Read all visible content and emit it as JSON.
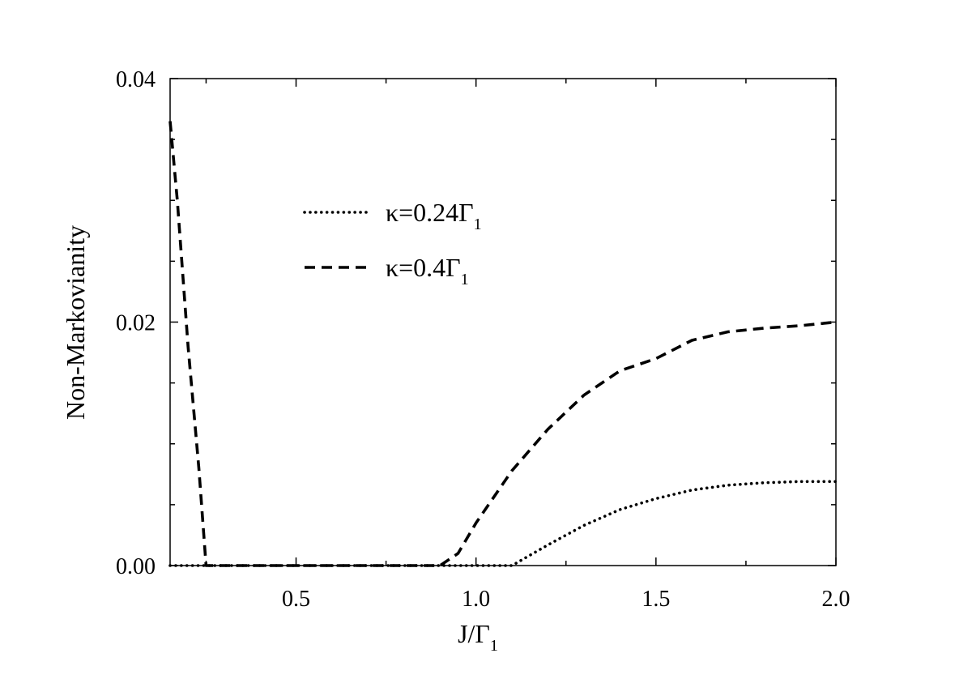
{
  "chart_data": {
    "type": "line",
    "title": "",
    "xlabel": {
      "main": "J/Γ",
      "sub": "1"
    },
    "ylabel": "Non-Markovianity",
    "xlim": [
      0.15,
      2.0
    ],
    "ylim": [
      0.0,
      0.04
    ],
    "x_ticks": [
      0.5,
      1.0,
      1.5,
      2.0
    ],
    "x_tick_labels": [
      "0.5",
      "1.0",
      "1.5",
      "2.0"
    ],
    "y_ticks": [
      0.0,
      0.02,
      0.04
    ],
    "y_tick_labels": [
      "0.00",
      "0.02",
      "0.04"
    ],
    "grid": false,
    "legend_position": "upper-left",
    "series": [
      {
        "name": "κ=0.24Γ",
        "name_sub": "1",
        "style": "dotted",
        "color": "#000000",
        "points": [
          [
            0.15,
            0.0
          ],
          [
            0.5,
            0.0
          ],
          [
            1.0,
            0.0
          ],
          [
            1.1,
            0.0
          ],
          [
            1.2,
            0.0017
          ],
          [
            1.3,
            0.0033
          ],
          [
            1.4,
            0.0046
          ],
          [
            1.5,
            0.0055
          ],
          [
            1.6,
            0.0062
          ],
          [
            1.7,
            0.0066
          ],
          [
            1.8,
            0.0068
          ],
          [
            1.9,
            0.0069
          ],
          [
            2.0,
            0.0069
          ]
        ]
      },
      {
        "name": "κ=0.4Γ",
        "name_sub": "1",
        "style": "dashed",
        "color": "#000000",
        "points": [
          [
            0.15,
            0.0365
          ],
          [
            0.17,
            0.03
          ],
          [
            0.2,
            0.018
          ],
          [
            0.23,
            0.008
          ],
          [
            0.25,
            0.0
          ],
          [
            0.5,
            0.0
          ],
          [
            0.9,
            0.0
          ],
          [
            0.95,
            0.001
          ],
          [
            1.0,
            0.0035
          ],
          [
            1.1,
            0.0078
          ],
          [
            1.2,
            0.0112
          ],
          [
            1.3,
            0.014
          ],
          [
            1.4,
            0.016
          ],
          [
            1.5,
            0.017
          ],
          [
            1.6,
            0.0185
          ],
          [
            1.7,
            0.0192
          ],
          [
            1.8,
            0.0195
          ],
          [
            1.9,
            0.0197
          ],
          [
            2.0,
            0.02
          ]
        ]
      }
    ]
  }
}
